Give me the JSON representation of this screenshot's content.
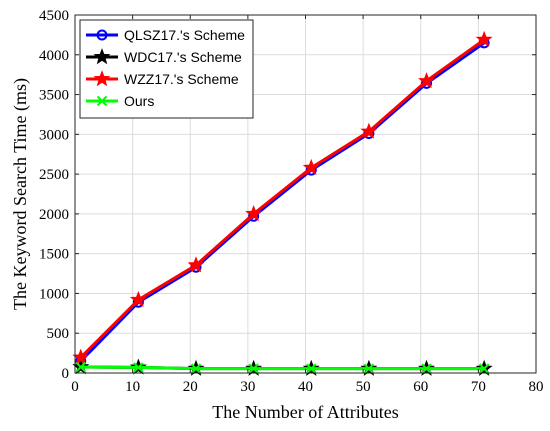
{
  "chart_data": {
    "type": "line",
    "title": "",
    "xlabel": "The Number of Attributes",
    "ylabel": "The Keyword Search Time (ms)",
    "xlim": [
      0,
      80
    ],
    "ylim": [
      0,
      4500
    ],
    "xticks": [
      0,
      10,
      20,
      30,
      40,
      50,
      60,
      70,
      80
    ],
    "yticks": [
      0,
      500,
      1000,
      1500,
      2000,
      2500,
      3000,
      3500,
      4000,
      4500
    ],
    "grid": true,
    "legend_position": "top-left",
    "x": [
      1,
      11,
      21,
      31,
      41,
      51,
      61,
      71
    ],
    "series": [
      {
        "name": "QLSZ17.'s Scheme",
        "color": "#0000ff",
        "marker": "circle",
        "values": [
          150,
          890,
          1330,
          1970,
          2550,
          3010,
          3640,
          4150
        ]
      },
      {
        "name": "WDC17.'s Scheme",
        "color": "#000000",
        "marker": "star",
        "values": [
          75,
          70,
          55,
          55,
          55,
          55,
          55,
          55
        ]
      },
      {
        "name": "WZZ17.'s Scheme",
        "color": "#ff0000",
        "marker": "star",
        "values": [
          195,
          920,
          1355,
          2000,
          2580,
          3035,
          3670,
          4190
        ]
      },
      {
        "name": "Ours",
        "color": "#00ff00",
        "marker": "x",
        "values": [
          75,
          70,
          55,
          55,
          55,
          55,
          55,
          55
        ]
      }
    ]
  }
}
